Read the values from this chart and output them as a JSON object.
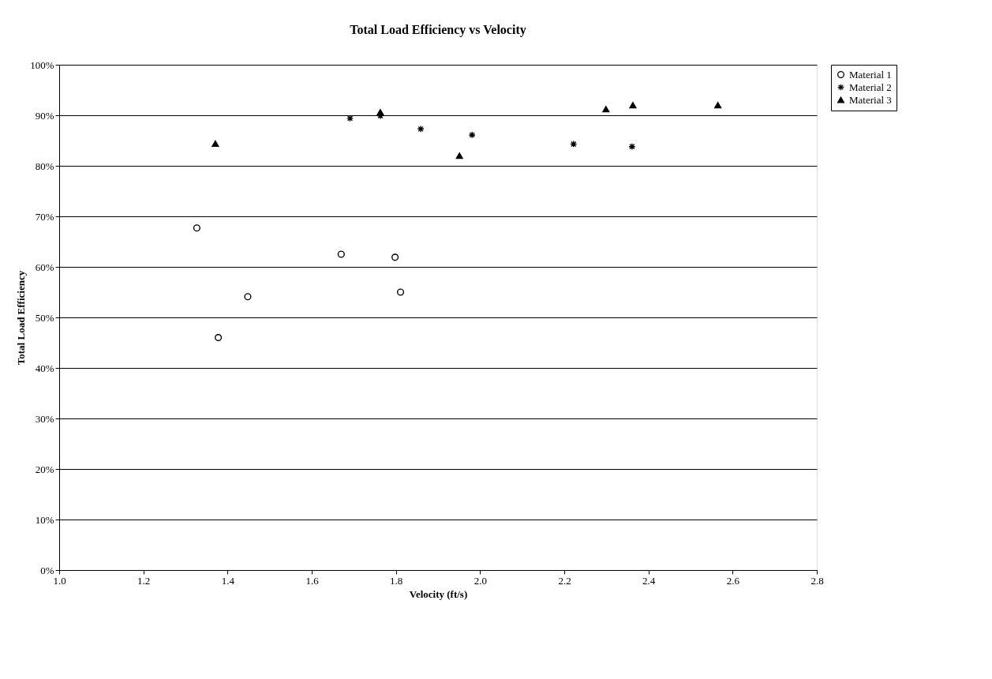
{
  "chart_data": {
    "type": "scatter",
    "title": "Total Load Efficiency vs Velocity",
    "xlabel": "Velocity (ft/s)",
    "ylabel": "Total Load Efficiency",
    "xlim": [
      1.0,
      2.8
    ],
    "xticks": [
      {
        "value": 1.0,
        "label": "1.0"
      },
      1.2,
      1.4,
      1.6,
      1.8,
      {
        "value": 2.0,
        "label": "2.0"
      },
      2.2,
      2.4,
      2.6,
      2.8
    ],
    "ylim": [
      0,
      100
    ],
    "yticks": [
      {
        "value": 0,
        "label": "0%"
      },
      {
        "value": 10,
        "label": "10%"
      },
      {
        "value": 20,
        "label": "20%"
      },
      {
        "value": 30,
        "label": "30%"
      },
      {
        "value": 40,
        "label": "40%"
      },
      {
        "value": 50,
        "label": "50%"
      },
      {
        "value": 60,
        "label": "60%"
      },
      {
        "value": 70,
        "label": "70%"
      },
      {
        "value": 80,
        "label": "80%"
      },
      {
        "value": 90,
        "label": "90%"
      },
      {
        "value": 100,
        "label": "100%"
      }
    ],
    "grid": "y",
    "legend": "right",
    "series": [
      {
        "name": "Material 1",
        "color": "#000000",
        "marker": "circle",
        "x": [
          1.327,
          1.378,
          1.448,
          1.67,
          1.798,
          1.811
        ],
        "values": [
          67.7,
          46.0,
          54.1,
          62.5,
          61.9,
          55.0
        ]
      },
      {
        "name": "Material 2",
        "color": "#000000",
        "marker": "cross",
        "x": [
          1.691,
          1.763,
          1.859,
          1.981,
          2.222,
          2.361
        ],
        "values": [
          89.4,
          89.9,
          87.3,
          86.1,
          84.3,
          83.8
        ]
      },
      {
        "name": "Material 3",
        "color": "#000000",
        "marker": "triangle",
        "x": [
          1.371,
          1.763,
          1.951,
          2.299,
          2.363,
          2.565
        ],
        "values": [
          84.4,
          90.6,
          82.0,
          91.2,
          92.0,
          92.0
        ]
      }
    ]
  }
}
